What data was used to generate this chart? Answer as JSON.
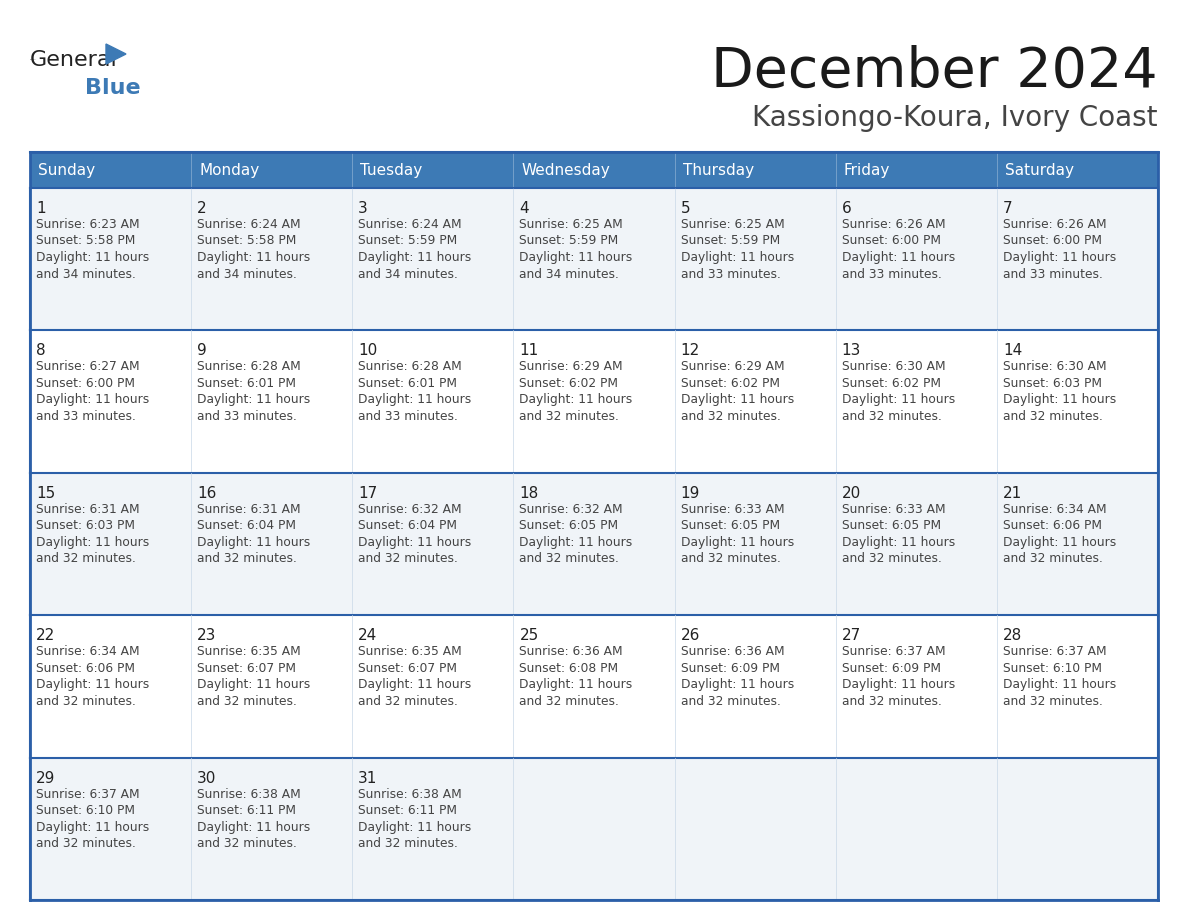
{
  "title": "December 2024",
  "subtitle": "Kassiongo-Koura, Ivory Coast",
  "days_of_week": [
    "Sunday",
    "Monday",
    "Tuesday",
    "Wednesday",
    "Thursday",
    "Friday",
    "Saturday"
  ],
  "header_bg": "#3d7ab5",
  "header_text": "#ffffff",
  "cell_bg_odd": "#f0f4f8",
  "cell_bg_even": "#ffffff",
  "border_color_outer": "#2b5fa8",
  "border_color_inner": "#c8d8e8",
  "border_color_week": "#2b5fa8",
  "title_color": "#1a1a1a",
  "subtitle_color": "#444444",
  "day_num_color": "#222222",
  "cell_text_color": "#444444",
  "calendar_data": [
    [
      {
        "day": 1,
        "sunrise": "6:23 AM",
        "sunset": "5:58 PM",
        "daylight_hours": 11,
        "daylight_minutes": 34
      },
      {
        "day": 2,
        "sunrise": "6:24 AM",
        "sunset": "5:58 PM",
        "daylight_hours": 11,
        "daylight_minutes": 34
      },
      {
        "day": 3,
        "sunrise": "6:24 AM",
        "sunset": "5:59 PM",
        "daylight_hours": 11,
        "daylight_minutes": 34
      },
      {
        "day": 4,
        "sunrise": "6:25 AM",
        "sunset": "5:59 PM",
        "daylight_hours": 11,
        "daylight_minutes": 34
      },
      {
        "day": 5,
        "sunrise": "6:25 AM",
        "sunset": "5:59 PM",
        "daylight_hours": 11,
        "daylight_minutes": 33
      },
      {
        "day": 6,
        "sunrise": "6:26 AM",
        "sunset": "6:00 PM",
        "daylight_hours": 11,
        "daylight_minutes": 33
      },
      {
        "day": 7,
        "sunrise": "6:26 AM",
        "sunset": "6:00 PM",
        "daylight_hours": 11,
        "daylight_minutes": 33
      }
    ],
    [
      {
        "day": 8,
        "sunrise": "6:27 AM",
        "sunset": "6:00 PM",
        "daylight_hours": 11,
        "daylight_minutes": 33
      },
      {
        "day": 9,
        "sunrise": "6:28 AM",
        "sunset": "6:01 PM",
        "daylight_hours": 11,
        "daylight_minutes": 33
      },
      {
        "day": 10,
        "sunrise": "6:28 AM",
        "sunset": "6:01 PM",
        "daylight_hours": 11,
        "daylight_minutes": 33
      },
      {
        "day": 11,
        "sunrise": "6:29 AM",
        "sunset": "6:02 PM",
        "daylight_hours": 11,
        "daylight_minutes": 32
      },
      {
        "day": 12,
        "sunrise": "6:29 AM",
        "sunset": "6:02 PM",
        "daylight_hours": 11,
        "daylight_minutes": 32
      },
      {
        "day": 13,
        "sunrise": "6:30 AM",
        "sunset": "6:02 PM",
        "daylight_hours": 11,
        "daylight_minutes": 32
      },
      {
        "day": 14,
        "sunrise": "6:30 AM",
        "sunset": "6:03 PM",
        "daylight_hours": 11,
        "daylight_minutes": 32
      }
    ],
    [
      {
        "day": 15,
        "sunrise": "6:31 AM",
        "sunset": "6:03 PM",
        "daylight_hours": 11,
        "daylight_minutes": 32
      },
      {
        "day": 16,
        "sunrise": "6:31 AM",
        "sunset": "6:04 PM",
        "daylight_hours": 11,
        "daylight_minutes": 32
      },
      {
        "day": 17,
        "sunrise": "6:32 AM",
        "sunset": "6:04 PM",
        "daylight_hours": 11,
        "daylight_minutes": 32
      },
      {
        "day": 18,
        "sunrise": "6:32 AM",
        "sunset": "6:05 PM",
        "daylight_hours": 11,
        "daylight_minutes": 32
      },
      {
        "day": 19,
        "sunrise": "6:33 AM",
        "sunset": "6:05 PM",
        "daylight_hours": 11,
        "daylight_minutes": 32
      },
      {
        "day": 20,
        "sunrise": "6:33 AM",
        "sunset": "6:05 PM",
        "daylight_hours": 11,
        "daylight_minutes": 32
      },
      {
        "day": 21,
        "sunrise": "6:34 AM",
        "sunset": "6:06 PM",
        "daylight_hours": 11,
        "daylight_minutes": 32
      }
    ],
    [
      {
        "day": 22,
        "sunrise": "6:34 AM",
        "sunset": "6:06 PM",
        "daylight_hours": 11,
        "daylight_minutes": 32
      },
      {
        "day": 23,
        "sunrise": "6:35 AM",
        "sunset": "6:07 PM",
        "daylight_hours": 11,
        "daylight_minutes": 32
      },
      {
        "day": 24,
        "sunrise": "6:35 AM",
        "sunset": "6:07 PM",
        "daylight_hours": 11,
        "daylight_minutes": 32
      },
      {
        "day": 25,
        "sunrise": "6:36 AM",
        "sunset": "6:08 PM",
        "daylight_hours": 11,
        "daylight_minutes": 32
      },
      {
        "day": 26,
        "sunrise": "6:36 AM",
        "sunset": "6:09 PM",
        "daylight_hours": 11,
        "daylight_minutes": 32
      },
      {
        "day": 27,
        "sunrise": "6:37 AM",
        "sunset": "6:09 PM",
        "daylight_hours": 11,
        "daylight_minutes": 32
      },
      {
        "day": 28,
        "sunrise": "6:37 AM",
        "sunset": "6:10 PM",
        "daylight_hours": 11,
        "daylight_minutes": 32
      }
    ],
    [
      {
        "day": 29,
        "sunrise": "6:37 AM",
        "sunset": "6:10 PM",
        "daylight_hours": 11,
        "daylight_minutes": 32
      },
      {
        "day": 30,
        "sunrise": "6:38 AM",
        "sunset": "6:11 PM",
        "daylight_hours": 11,
        "daylight_minutes": 32
      },
      {
        "day": 31,
        "sunrise": "6:38 AM",
        "sunset": "6:11 PM",
        "daylight_hours": 11,
        "daylight_minutes": 32
      },
      null,
      null,
      null,
      null
    ]
  ],
  "logo_color_general": "#222222",
  "logo_color_blue": "#3d7ab5",
  "logo_triangle_color": "#3d7ab5",
  "fig_width": 11.88,
  "fig_height": 9.18,
  "dpi": 100
}
